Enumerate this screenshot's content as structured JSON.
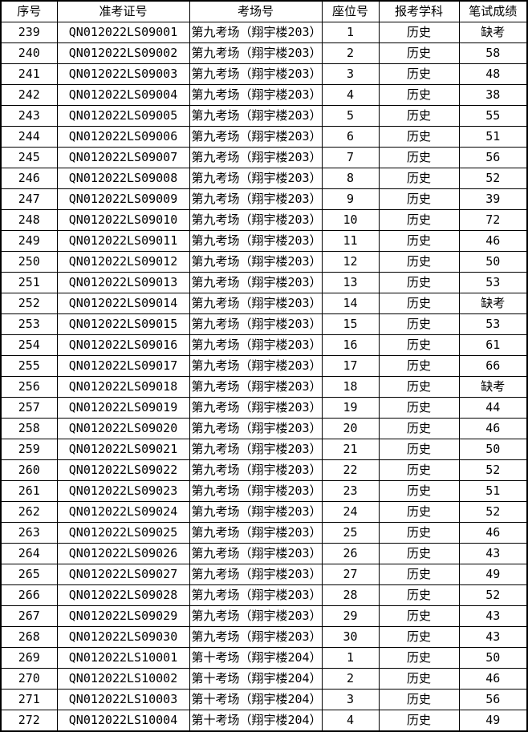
{
  "table": {
    "columns": [
      "序号",
      "准考证号",
      "考场号",
      "座位号",
      "报考学科",
      "笔试成绩"
    ],
    "absent_label": "缺考",
    "rows": [
      [
        "239",
        "QN012022LS09001",
        "第九考场（翔宇楼203）",
        "1",
        "历史",
        "缺考"
      ],
      [
        "240",
        "QN012022LS09002",
        "第九考场（翔宇楼203）",
        "2",
        "历史",
        "58"
      ],
      [
        "241",
        "QN012022LS09003",
        "第九考场（翔宇楼203）",
        "3",
        "历史",
        "48"
      ],
      [
        "242",
        "QN012022LS09004",
        "第九考场（翔宇楼203）",
        "4",
        "历史",
        "38"
      ],
      [
        "243",
        "QN012022LS09005",
        "第九考场（翔宇楼203）",
        "5",
        "历史",
        "55"
      ],
      [
        "244",
        "QN012022LS09006",
        "第九考场（翔宇楼203）",
        "6",
        "历史",
        "51"
      ],
      [
        "245",
        "QN012022LS09007",
        "第九考场（翔宇楼203）",
        "7",
        "历史",
        "56"
      ],
      [
        "246",
        "QN012022LS09008",
        "第九考场（翔宇楼203）",
        "8",
        "历史",
        "52"
      ],
      [
        "247",
        "QN012022LS09009",
        "第九考场（翔宇楼203）",
        "9",
        "历史",
        "39"
      ],
      [
        "248",
        "QN012022LS09010",
        "第九考场（翔宇楼203）",
        "10",
        "历史",
        "72"
      ],
      [
        "249",
        "QN012022LS09011",
        "第九考场（翔宇楼203）",
        "11",
        "历史",
        "46"
      ],
      [
        "250",
        "QN012022LS09012",
        "第九考场（翔宇楼203）",
        "12",
        "历史",
        "50"
      ],
      [
        "251",
        "QN012022LS09013",
        "第九考场（翔宇楼203）",
        "13",
        "历史",
        "53"
      ],
      [
        "252",
        "QN012022LS09014",
        "第九考场（翔宇楼203）",
        "14",
        "历史",
        "缺考"
      ],
      [
        "253",
        "QN012022LS09015",
        "第九考场（翔宇楼203）",
        "15",
        "历史",
        "53"
      ],
      [
        "254",
        "QN012022LS09016",
        "第九考场（翔宇楼203）",
        "16",
        "历史",
        "61"
      ],
      [
        "255",
        "QN012022LS09017",
        "第九考场（翔宇楼203）",
        "17",
        "历史",
        "66"
      ],
      [
        "256",
        "QN012022LS09018",
        "第九考场（翔宇楼203）",
        "18",
        "历史",
        "缺考"
      ],
      [
        "257",
        "QN012022LS09019",
        "第九考场（翔宇楼203）",
        "19",
        "历史",
        "44"
      ],
      [
        "258",
        "QN012022LS09020",
        "第九考场（翔宇楼203）",
        "20",
        "历史",
        "46"
      ],
      [
        "259",
        "QN012022LS09021",
        "第九考场（翔宇楼203）",
        "21",
        "历史",
        "50"
      ],
      [
        "260",
        "QN012022LS09022",
        "第九考场（翔宇楼203）",
        "22",
        "历史",
        "52"
      ],
      [
        "261",
        "QN012022LS09023",
        "第九考场（翔宇楼203）",
        "23",
        "历史",
        "51"
      ],
      [
        "262",
        "QN012022LS09024",
        "第九考场（翔宇楼203）",
        "24",
        "历史",
        "52"
      ],
      [
        "263",
        "QN012022LS09025",
        "第九考场（翔宇楼203）",
        "25",
        "历史",
        "46"
      ],
      [
        "264",
        "QN012022LS09026",
        "第九考场（翔宇楼203）",
        "26",
        "历史",
        "43"
      ],
      [
        "265",
        "QN012022LS09027",
        "第九考场（翔宇楼203）",
        "27",
        "历史",
        "49"
      ],
      [
        "266",
        "QN012022LS09028",
        "第九考场（翔宇楼203）",
        "28",
        "历史",
        "52"
      ],
      [
        "267",
        "QN012022LS09029",
        "第九考场（翔宇楼203）",
        "29",
        "历史",
        "43"
      ],
      [
        "268",
        "QN012022LS09030",
        "第九考场（翔宇楼203）",
        "30",
        "历史",
        "43"
      ],
      [
        "269",
        "QN012022LS10001",
        "第十考场（翔宇楼204）",
        "1",
        "历史",
        "50"
      ],
      [
        "270",
        "QN012022LS10002",
        "第十考场（翔宇楼204）",
        "2",
        "历史",
        "46"
      ],
      [
        "271",
        "QN012022LS10003",
        "第十考场（翔宇楼204）",
        "3",
        "历史",
        "56"
      ],
      [
        "272",
        "QN012022LS10004",
        "第十考场（翔宇楼204）",
        "4",
        "历史",
        "49"
      ]
    ],
    "colors": {
      "border": "#000000",
      "text": "#000000",
      "background": "#ffffff"
    }
  }
}
